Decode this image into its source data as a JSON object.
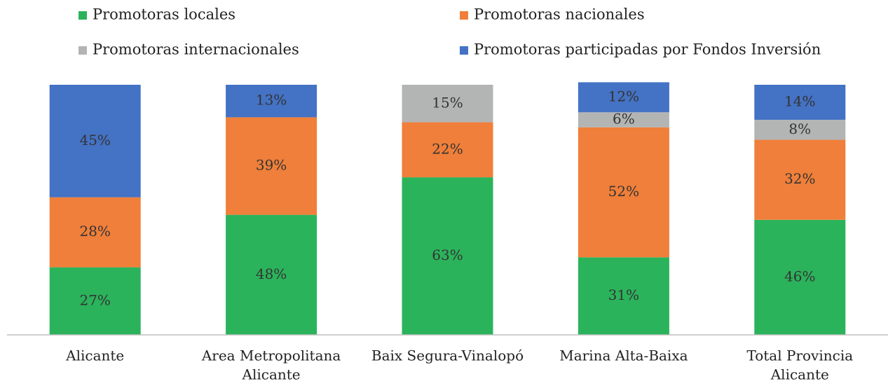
{
  "chart_data": {
    "type": "stacked_bar",
    "categories": [
      [
        "Alicante"
      ],
      [
        "Area Metropolitana",
        "Alicante"
      ],
      [
        "Baix Segura-Vinalopó"
      ],
      [
        "Marina Alta-Baixa"
      ],
      [
        "Total Provincia",
        "Alicante"
      ]
    ],
    "series": [
      {
        "name": "Promotoras locales",
        "color": "#2bb35b",
        "values": [
          27,
          48,
          63,
          31,
          46
        ],
        "value_labels": [
          "27%",
          "48%",
          "63%",
          "31%",
          "46%"
        ]
      },
      {
        "name": "Promotoras nacionales",
        "color": "#ef7f3a",
        "values": [
          28,
          39,
          22,
          52,
          32
        ],
        "value_labels": [
          "28%",
          "39%",
          "22%",
          "52%",
          "32%"
        ]
      },
      {
        "name": "Promotoras internacionales",
        "color": "#b3b5b5",
        "values": [
          null,
          null,
          15,
          6,
          8
        ],
        "value_labels": [
          null,
          null,
          "15%",
          "6%",
          "8%"
        ]
      },
      {
        "name": "Promotoras participadas por Fondos Inversión",
        "color": "#4472c4",
        "values": [
          45,
          13,
          null,
          12,
          14
        ],
        "value_labels": [
          "45%",
          "13%",
          null,
          "12%",
          "14%"
        ]
      }
    ],
    "ylim": [
      0,
      100
    ]
  }
}
